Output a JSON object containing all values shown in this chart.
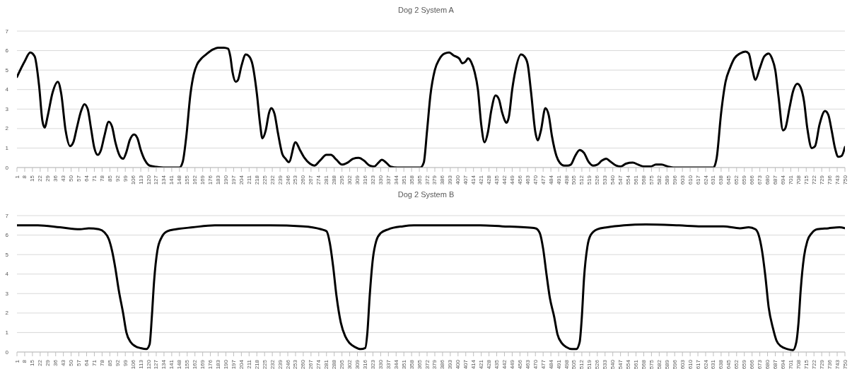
{
  "chart_data": [
    {
      "type": "line",
      "title": "Dog 2 System A",
      "grid": "y",
      "marker": "none",
      "line_style": "solid",
      "xlim": [
        1,
        750
      ],
      "xticks": [
        1,
        8,
        15,
        22,
        29,
        36,
        43,
        50,
        57,
        64,
        71,
        78,
        85,
        92,
        99,
        106,
        113,
        120,
        127,
        134,
        141,
        148,
        155,
        162,
        169,
        176,
        183,
        190,
        197,
        204,
        211,
        218,
        225,
        232,
        239,
        246,
        253,
        260,
        267,
        274,
        281,
        288,
        295,
        302,
        309,
        316,
        323,
        330,
        337,
        344,
        351,
        358,
        365,
        372,
        379,
        386,
        393,
        400,
        407,
        414,
        421,
        428,
        435,
        442,
        449,
        456,
        463,
        470,
        477,
        484,
        491,
        498,
        505,
        512,
        519,
        526,
        533,
        540,
        547,
        554,
        561,
        568,
        575,
        582,
        589,
        596,
        603,
        610,
        617,
        624,
        631,
        638,
        645,
        652,
        659,
        666,
        673,
        680,
        687,
        694,
        701,
        708,
        715,
        722,
        729,
        736,
        743,
        750
      ],
      "ylim": [
        0,
        7
      ],
      "yticks": [
        0,
        1,
        2,
        3,
        4,
        5,
        6,
        7
      ],
      "series": [
        {
          "color": "#000000",
          "x": [
            1,
            8,
            13,
            17,
            21,
            24,
            26,
            29,
            33,
            38,
            41,
            45,
            49,
            52,
            55,
            59,
            62,
            65,
            68,
            71,
            74,
            77,
            80,
            84,
            87,
            90,
            94,
            97,
            100,
            103,
            107,
            110,
            113,
            117,
            121,
            127,
            135,
            148,
            151,
            154,
            158,
            161,
            164,
            168,
            172,
            178,
            183,
            188,
            192,
            194,
            196,
            199,
            201,
            204,
            208,
            211,
            214,
            218,
            221,
            223,
            226,
            229,
            231,
            234,
            237,
            241,
            244,
            247,
            253,
            257,
            261,
            266,
            270,
            275,
            281,
            285,
            290,
            295,
            300,
            305,
            310,
            315,
            320,
            324,
            328,
            331,
            335,
            339,
            345,
            366,
            369,
            372,
            375,
            379,
            383,
            388,
            392,
            396,
            401,
            404,
            407,
            409,
            412,
            415,
            418,
            421,
            424,
            427,
            430,
            434,
            437,
            440,
            444,
            446,
            449,
            452,
            457,
            460,
            463,
            466,
            470,
            472,
            475,
            479,
            482,
            485,
            489,
            492,
            496,
            499,
            502,
            506,
            510,
            514,
            518,
            522,
            526,
            530,
            534,
            538,
            543,
            547,
            552,
            558,
            563,
            568,
            574,
            579,
            584,
            590,
            596,
            631,
            634,
            638,
            642,
            646,
            650,
            655,
            660,
            663,
            666,
            669,
            673,
            677,
            681,
            684,
            687,
            690,
            694,
            696,
            700,
            703,
            707,
            710,
            713,
            716,
            720,
            723,
            727,
            732,
            735,
            738,
            741,
            744,
            747,
            750
          ],
          "values": [
            4.65,
            5.45,
            5.9,
            5.7,
            4.2,
            2.4,
            2.05,
            2.7,
            3.8,
            4.4,
            3.8,
            1.9,
            1.1,
            1.3,
            2.0,
            2.9,
            3.25,
            3.0,
            2.0,
            1.0,
            0.65,
            0.9,
            1.6,
            2.35,
            2.1,
            1.3,
            0.6,
            0.45,
            0.8,
            1.4,
            1.7,
            1.5,
            0.9,
            0.35,
            0.1,
            0.04,
            0,
            0,
            0.3,
            1.5,
            3.8,
            4.8,
            5.3,
            5.6,
            5.8,
            6.05,
            6.15,
            6.15,
            6.1,
            5.7,
            4.9,
            4.4,
            4.5,
            5.2,
            5.8,
            5.7,
            5.3,
            3.8,
            2.2,
            1.5,
            1.9,
            2.8,
            3.05,
            2.75,
            1.8,
            0.7,
            0.45,
            0.28,
            1.3,
            0.9,
            0.5,
            0.2,
            0.1,
            0.35,
            0.65,
            0.65,
            0.4,
            0.15,
            0.25,
            0.45,
            0.5,
            0.35,
            0.1,
            0.05,
            0.25,
            0.4,
            0.25,
            0.05,
            0,
            0,
            0.25,
            1.9,
            3.7,
            5.0,
            5.55,
            5.85,
            5.9,
            5.75,
            5.6,
            5.35,
            5.45,
            5.6,
            5.4,
            4.9,
            4.0,
            2.2,
            1.3,
            1.8,
            2.9,
            3.7,
            3.5,
            2.8,
            2.3,
            2.6,
            4.0,
            5.0,
            5.8,
            5.7,
            5.3,
            3.9,
            1.8,
            1.4,
            1.9,
            3.05,
            2.7,
            1.6,
            0.6,
            0.25,
            0.1,
            0.1,
            0.15,
            0.6,
            0.9,
            0.75,
            0.3,
            0.1,
            0.15,
            0.35,
            0.45,
            0.3,
            0.1,
            0.05,
            0.2,
            0.25,
            0.15,
            0.05,
            0.05,
            0.15,
            0.15,
            0.05,
            0,
            0,
            0.5,
            2.8,
            4.4,
            5.1,
            5.6,
            5.85,
            5.95,
            5.85,
            5.1,
            4.5,
            5.1,
            5.7,
            5.85,
            5.6,
            5.0,
            3.6,
            1.9,
            2.0,
            3.1,
            3.9,
            4.3,
            4.1,
            3.4,
            2.0,
            1.0,
            1.1,
            2.2,
            2.9,
            2.7,
            1.9,
            1.0,
            0.55,
            0.6,
            1.05
          ]
        }
      ]
    },
    {
      "type": "line",
      "title": "Dog 2 System B",
      "grid": "y",
      "marker": "none",
      "line_style": "solid",
      "xlim": [
        1,
        750
      ],
      "xticks": [
        1,
        8,
        15,
        22,
        29,
        36,
        43,
        50,
        57,
        64,
        71,
        78,
        85,
        92,
        99,
        106,
        113,
        120,
        127,
        134,
        141,
        148,
        155,
        162,
        169,
        176,
        183,
        190,
        197,
        204,
        211,
        218,
        225,
        232,
        239,
        246,
        253,
        260,
        267,
        274,
        281,
        288,
        295,
        302,
        309,
        316,
        323,
        330,
        337,
        344,
        351,
        358,
        365,
        372,
        379,
        386,
        393,
        400,
        407,
        414,
        421,
        428,
        435,
        442,
        449,
        456,
        463,
        470,
        477,
        484,
        491,
        498,
        505,
        512,
        519,
        526,
        533,
        540,
        547,
        554,
        561,
        568,
        575,
        582,
        589,
        596,
        603,
        610,
        617,
        624,
        631,
        638,
        645,
        652,
        659,
        666,
        673,
        680,
        687,
        694,
        701,
        708,
        715,
        722,
        729,
        736,
        743,
        750
      ],
      "ylim": [
        0,
        7
      ],
      "yticks": [
        0,
        1,
        2,
        3,
        4,
        5,
        6,
        7
      ],
      "series": [
        {
          "color": "#000000",
          "x": [
            1,
            20,
            40,
            58,
            66,
            75,
            80,
            84,
            87,
            90,
            93,
            97,
            100,
            104,
            108,
            113,
            118,
            121,
            123,
            125,
            128,
            132,
            137,
            145,
            160,
            180,
            200,
            230,
            260,
            276,
            281,
            284,
            287,
            290,
            294,
            298,
            302,
            307,
            312,
            316,
            318,
            320,
            323,
            326,
            330,
            337,
            350,
            360,
            380,
            400,
            420,
            440,
            460,
            470,
            474,
            477,
            480,
            483,
            487,
            490,
            494,
            498,
            503,
            507,
            510,
            512,
            514,
            517,
            520,
            526,
            535,
            550,
            570,
            600,
            620,
            640,
            655,
            663,
            669,
            672,
            675,
            678,
            681,
            685,
            688,
            692,
            698,
            703,
            706,
            708,
            710,
            713,
            716,
            720,
            725,
            735,
            745,
            750
          ],
          "values": [
            6.5,
            6.5,
            6.4,
            6.3,
            6.35,
            6.3,
            6.15,
            5.8,
            5.2,
            4.3,
            3.2,
            2.0,
            1.0,
            0.5,
            0.3,
            0.2,
            0.15,
            0.4,
            1.8,
            3.6,
            5.2,
            5.9,
            6.2,
            6.3,
            6.4,
            6.5,
            6.5,
            6.5,
            6.45,
            6.3,
            6.2,
            5.6,
            4.4,
            2.9,
            1.5,
            0.8,
            0.45,
            0.25,
            0.15,
            0.2,
            1.0,
            2.8,
            4.8,
            5.7,
            6.1,
            6.3,
            6.45,
            6.5,
            6.5,
            6.5,
            6.5,
            6.45,
            6.4,
            6.35,
            6.1,
            5.3,
            4.0,
            2.8,
            1.8,
            0.9,
            0.45,
            0.25,
            0.15,
            0.15,
            0.5,
            1.8,
            3.8,
            5.4,
            6.0,
            6.3,
            6.4,
            6.5,
            6.55,
            6.5,
            6.45,
            6.45,
            6.35,
            6.4,
            6.3,
            6.0,
            5.2,
            3.9,
            2.3,
            1.2,
            0.6,
            0.3,
            0.15,
            0.1,
            0.5,
            1.5,
            3.2,
            4.9,
            5.7,
            6.1,
            6.3,
            6.35,
            6.4,
            6.35
          ]
        }
      ]
    }
  ]
}
